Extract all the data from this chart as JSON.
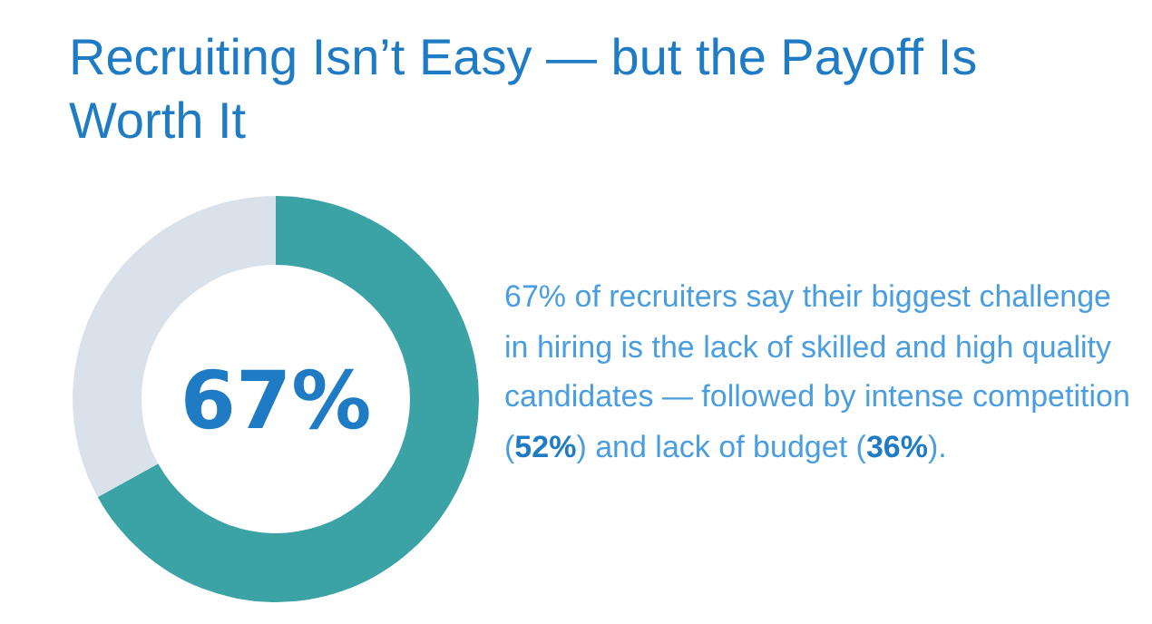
{
  "chart_data": {
    "type": "donut",
    "title": "Recruiting Isn’t Easy — but the Payoff Is Worth It",
    "categories": [
      null,
      null
    ],
    "values": [
      67,
      33
    ],
    "colors": [
      "#3ba3a5",
      "#d9e1ea"
    ],
    "value_labels": [
      "67%",
      null
    ],
    "annotations": [
      "67% of recruiters say their biggest challenge in hiring is the lack of skilled and high quality candidates — followed by intense competition (52%) and lack of budget (36%)."
    ]
  }
}
